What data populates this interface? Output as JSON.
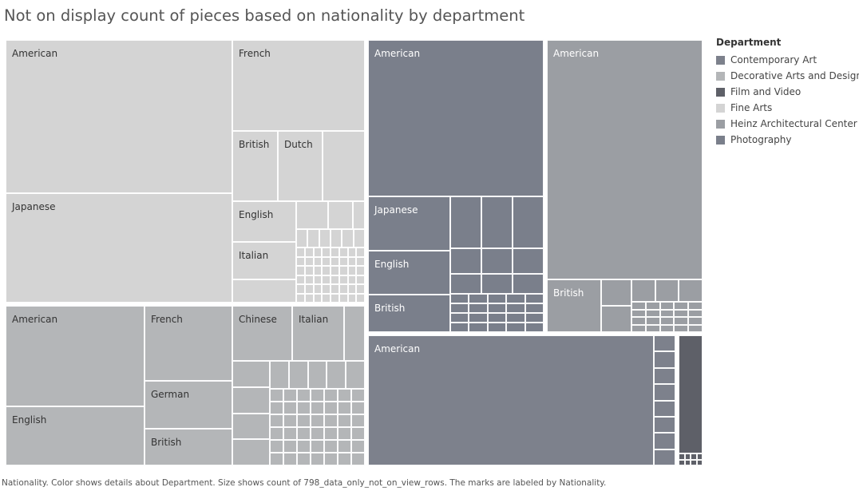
{
  "title": "Not on display count of pieces based on nationality by department",
  "caption": "Nationality.  Color shows details about Department.  Size shows count of 798_data_only_not_on_view_rows.  The marks are labeled by Nationality.",
  "legend": {
    "title": "Department",
    "items": [
      {
        "label": "Contemporary Art",
        "color": "#7d818c"
      },
      {
        "label": "Decorative Arts and Design",
        "color": "#b4b6b8"
      },
      {
        "label": "Film and Video",
        "color": "#5e6068"
      },
      {
        "label": "Fine Arts",
        "color": "#d4d4d4"
      },
      {
        "label": "Heinz Architectural Center",
        "color": "#9b9ea3"
      },
      {
        "label": "Photography",
        "color": "#7a7f8b"
      }
    ]
  },
  "chart_data": {
    "type": "treemap",
    "size_measure": "count of 798_data_only_not_on_view_rows",
    "color_by": "Department",
    "label_by": "Nationality",
    "groups": [
      {
        "department": "Fine Arts",
        "labeled": [
          "American",
          "Japanese",
          "French",
          "British",
          "Dutch",
          "English",
          "Italian"
        ]
      },
      {
        "department": "Photography",
        "labeled": [
          "American",
          "Japanese",
          "English",
          "British"
        ]
      },
      {
        "department": "Heinz Architectural Center",
        "labeled": [
          "American",
          "British"
        ]
      },
      {
        "department": "Decorative Arts and Design",
        "labeled": [
          "American",
          "English",
          "French",
          "German",
          "British",
          "Chinese",
          "Italian"
        ]
      },
      {
        "department": "Contemporary Art",
        "labeled": [
          "American"
        ]
      },
      {
        "department": "Film and Video",
        "labeled": []
      }
    ]
  }
}
